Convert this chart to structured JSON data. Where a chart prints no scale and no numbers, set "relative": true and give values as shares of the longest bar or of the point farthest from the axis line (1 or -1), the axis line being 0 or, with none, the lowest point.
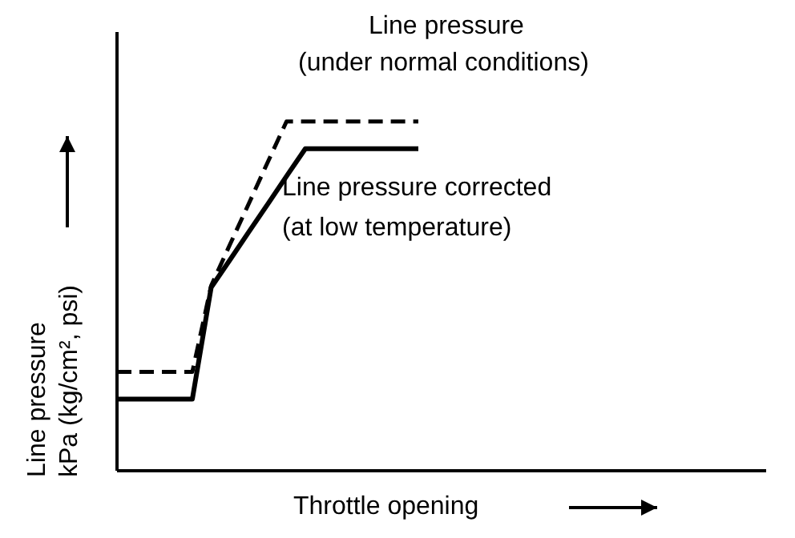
{
  "chart_data": {
    "type": "line",
    "relative": true,
    "xlabel": "Throttle opening",
    "ylabel": "Line pressure\nkPa (kg/cm², psi)",
    "categories": [
      null,
      null,
      null,
      null,
      null,
      null,
      null,
      null,
      null,
      null,
      null,
      null,
      null,
      null,
      null,
      null,
      null
    ],
    "grid": false,
    "legend": false,
    "marker": "none",
    "series": [
      {
        "name": "Line pressure\n(under normal conditions)",
        "color": "#000000",
        "line_style": "dashed",
        "values": [
          0.283,
          0.283,
          0.283,
          0.283,
          0.283,
          0.53,
          0.648,
          0.765,
          0.883,
          1,
          1,
          1,
          1,
          1,
          1,
          1,
          1
        ]
      },
      {
        "name": "Line pressure corrected\n(at low temperature)",
        "color": "#000000",
        "line_style": "solid",
        "values": [
          0.205,
          0.205,
          0.205,
          0.205,
          0.205,
          0.525,
          0.604,
          0.684,
          0.763,
          0.843,
          0.922,
          0.922,
          0.922,
          0.922,
          0.922,
          0.922,
          0.922
        ]
      }
    ]
  }
}
